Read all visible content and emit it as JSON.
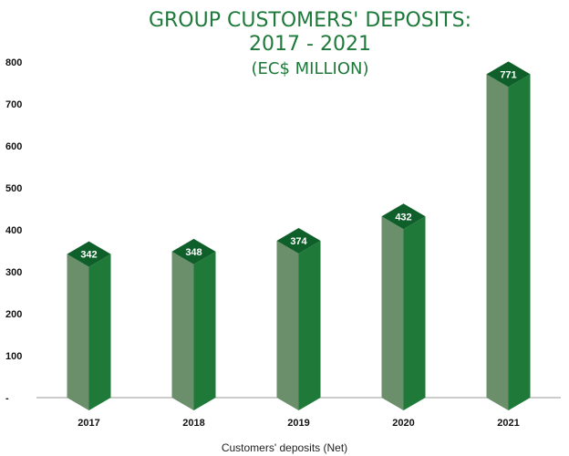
{
  "title": {
    "line1": "GROUP CUSTOMERS' DEPOSITS:",
    "line2": "2017 - 2021",
    "line3": "(EC$ MILLION)"
  },
  "chart_data": {
    "type": "bar",
    "categories": [
      "2017",
      "2018",
      "2019",
      "2020",
      "2021"
    ],
    "values": [
      342,
      348,
      374,
      432,
      771
    ],
    "data_labels": [
      "342",
      "348",
      "374",
      "432",
      "771"
    ],
    "xlabel": "Customers' deposits (Net)",
    "ylabel": "",
    "ylim": [
      0,
      800
    ],
    "yticks": [
      "-",
      "100",
      "200",
      "300",
      "400",
      "500",
      "600",
      "700",
      "800"
    ],
    "grid": false,
    "legend": "none",
    "colors": {
      "front": "#6a8f6a",
      "side": "#1f7a3a",
      "top": "#0f5f2a",
      "axis": "#999999"
    }
  }
}
